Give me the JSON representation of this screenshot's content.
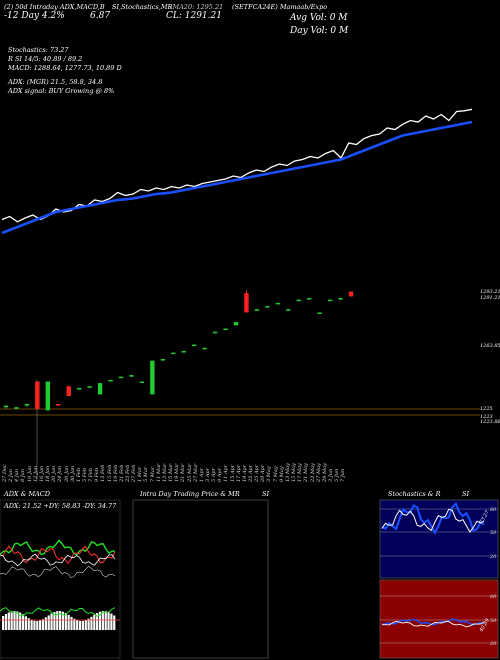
{
  "header": {
    "line1_left": "(2) 50d Intraday ADX,MACD,B",
    "line1_mid": "SI,Stochastics,MR",
    "line1_right": "(SETFCA24E) Mamaab/Expo",
    "ticker": "(SETFCA24E)",
    "sma20": "SMA20: 1295.21",
    "change": "-12 Day 4.2%",
    "value": "6.87",
    "cl_label": "CL: 1291.21",
    "avg_vol": "Avg Vol: 0  M",
    "day_vol": "Day Vol: 0  M"
  },
  "indicators": {
    "stochastics": "Stochastics: 73.27",
    "r_line": "R                    SI 14/5: 40.89 / 89.2",
    "macd": "MACD: 1288.64,  1277.73,  10.89 D",
    "adx": "ADX:                              (MGR) 21.5,  58.8,  34.8",
    "adx_signal": "ADX   signal:                                   BUY Growing @ 8%"
  },
  "price_labels": [
    "1293.21",
    "1291.21",
    "1263.85",
    "1225",
    "1223",
    "1223.86"
  ],
  "date_labels": [
    "27 Dec",
    "2 Jan",
    "4 Jan",
    "8 Jan",
    "10 Jan",
    "12 Jan",
    "16 Jan",
    "18 Jan",
    "20 Jan",
    "24 Jan",
    "26 Jan",
    "30 Jan",
    "1 Feb",
    "5 Feb",
    "7 Feb",
    "9 Feb",
    "13 Feb",
    "15 Feb",
    "19 Feb",
    "21 Feb",
    "23 Feb",
    "27 Feb",
    "1 Mar",
    "5 Mar",
    "7 Mar",
    "11 Mar",
    "13 Mar",
    "15 Mar",
    "19 Mar",
    "21 Mar",
    "25 Mar",
    "27 Mar",
    "1 Apr",
    "3 Apr",
    "5 Apr",
    "9 Apr",
    "11 Apr",
    "15 Apr",
    "17 Apr",
    "19 Apr",
    "23 Apr",
    "25 Apr",
    "29 Apr",
    "3 May",
    "7 May",
    "9 May",
    "13 May",
    "15 May",
    "17 May",
    "21 May",
    "23 May",
    "27 May",
    "29 May",
    "3 Jun",
    "5 Jun",
    "7 Jun"
  ],
  "panels": {
    "adx_title": "ADX  & MACD",
    "adx_values": "ADX: 21.52  +DY: 58.83  -DY: 34.77",
    "intraday_title": "Intra  Day Trading Price  & MR",
    "si_title": "SI",
    "stoch_title": "Stochastics & R",
    "stoch_si": "SI",
    "stoch_ticks": [
      "80",
      "50",
      "20"
    ],
    "r_ticks": [
      "80",
      "50",
      "20"
    ],
    "stoch_value": "73.27",
    "r_value": "40.89"
  },
  "colors": {
    "up": "#22cc33",
    "down": "#ff2222",
    "sma": "#1a4fff",
    "grid": "#8b5a00"
  },
  "chart_data": {
    "type": "line",
    "series": [
      {
        "values": [
          38,
          42,
          35,
          40,
          44,
          38,
          43,
          52,
          48,
          50,
          58,
          56,
          64,
          62,
          66,
          74,
          70,
          72,
          78,
          76,
          80,
          78,
          82,
          80,
          84,
          82,
          86,
          88,
          90,
          92,
          96,
          94,
          100,
          104,
          102,
          108,
          112,
          110,
          116,
          118,
          122,
          120,
          126,
          130,
          120,
          140,
          138,
          146,
          150,
          152,
          160,
          158,
          165,
          170,
          168,
          176,
          172,
          178,
          170,
          182,
          183,
          185
        ]
      },
      {
        "values": [
          20,
          24,
          28,
          32,
          36,
          40,
          44,
          48,
          50,
          52,
          54,
          56,
          58,
          60,
          62,
          64,
          65,
          66,
          68,
          70,
          72,
          73,
          74,
          76,
          78,
          80,
          82,
          84,
          86,
          88,
          90,
          92,
          94,
          96,
          98,
          100,
          102,
          104,
          106,
          108,
          110,
          112,
          114,
          116,
          118,
          122,
          126,
          130,
          134,
          138,
          142,
          146,
          150,
          152,
          154,
          156,
          158,
          160,
          162,
          164,
          166,
          168
        ]
      }
    ],
    "candles": [
      {
        "o": 1225,
        "c": 1226,
        "h": 1226,
        "l": 1224
      },
      {
        "o": 1224,
        "c": 1225,
        "h": 1225,
        "l": 1224
      },
      {
        "o": 1226,
        "c": 1227,
        "h": 1227,
        "l": 1225
      },
      {
        "o": 1241,
        "c": 1224,
        "h": 1241,
        "l": 1224
      },
      {
        "o": 1223,
        "c": 1241,
        "h": 1241,
        "l": 1223
      },
      {
        "o": 1227,
        "c": 1226,
        "h": 1227,
        "l": 1226
      },
      {
        "o": 1238,
        "c": 1232,
        "h": 1238,
        "l": 1232
      },
      {
        "o": 1236,
        "c": 1237,
        "h": 1237,
        "l": 1236
      },
      {
        "o": 1238,
        "c": 1238,
        "h": 1238,
        "l": 1237
      },
      {
        "o": 1233,
        "c": 1240,
        "h": 1240,
        "l": 1233
      },
      {
        "o": 1242,
        "c": 1242,
        "h": 1242,
        "l": 1241
      },
      {
        "o": 1244,
        "c": 1244,
        "h": 1244,
        "l": 1243
      },
      {
        "o": 1244,
        "c": 1245,
        "h": 1245,
        "l": 1244
      },
      {
        "o": 1241,
        "c": 1241,
        "h": 1241,
        "l": 1240
      },
      {
        "o": 1233,
        "c": 1254,
        "h": 1254,
        "l": 1233
      },
      {
        "o": 1255,
        "c": 1255,
        "h": 1255,
        "l": 1254
      },
      {
        "o": 1259,
        "c": 1259,
        "h": 1259,
        "l": 1258
      },
      {
        "o": 1260,
        "c": 1260,
        "h": 1260,
        "l": 1259
      },
      {
        "o": 1264,
        "c": 1264,
        "h": 1264,
        "l": 1263
      },
      {
        "o": 1262,
        "c": 1262,
        "h": 1262,
        "l": 1261
      },
      {
        "o": 1272,
        "c": 1272,
        "h": 1272,
        "l": 1271
      },
      {
        "o": 1274,
        "c": 1274,
        "h": 1274,
        "l": 1273
      },
      {
        "o": 1276,
        "c": 1278,
        "h": 1278,
        "l": 1276
      },
      {
        "o": 1296,
        "c": 1284,
        "h": 1298,
        "l": 1284
      },
      {
        "o": 1286,
        "c": 1286,
        "h": 1286,
        "l": 1285
      },
      {
        "o": 1288,
        "c": 1288,
        "h": 1288,
        "l": 1287
      },
      {
        "o": 1290,
        "c": 1290,
        "h": 1290,
        "l": 1289
      },
      {
        "o": 1286,
        "c": 1286,
        "h": 1286,
        "l": 1285
      },
      {
        "o": 1292,
        "c": 1292,
        "h": 1292,
        "l": 1291
      },
      {
        "o": 1293,
        "c": 1293,
        "h": 1293,
        "l": 1292
      },
      {
        "o": 1284,
        "c": 1284,
        "h": 1284,
        "l": 1283
      },
      {
        "o": 1292,
        "c": 1292,
        "h": 1292,
        "l": 1291
      },
      {
        "o": 1293,
        "c": 1293,
        "h": 1293,
        "l": 1292
      },
      {
        "o": 1297,
        "c": 1294,
        "h": 1297,
        "l": 1294
      }
    ]
  }
}
